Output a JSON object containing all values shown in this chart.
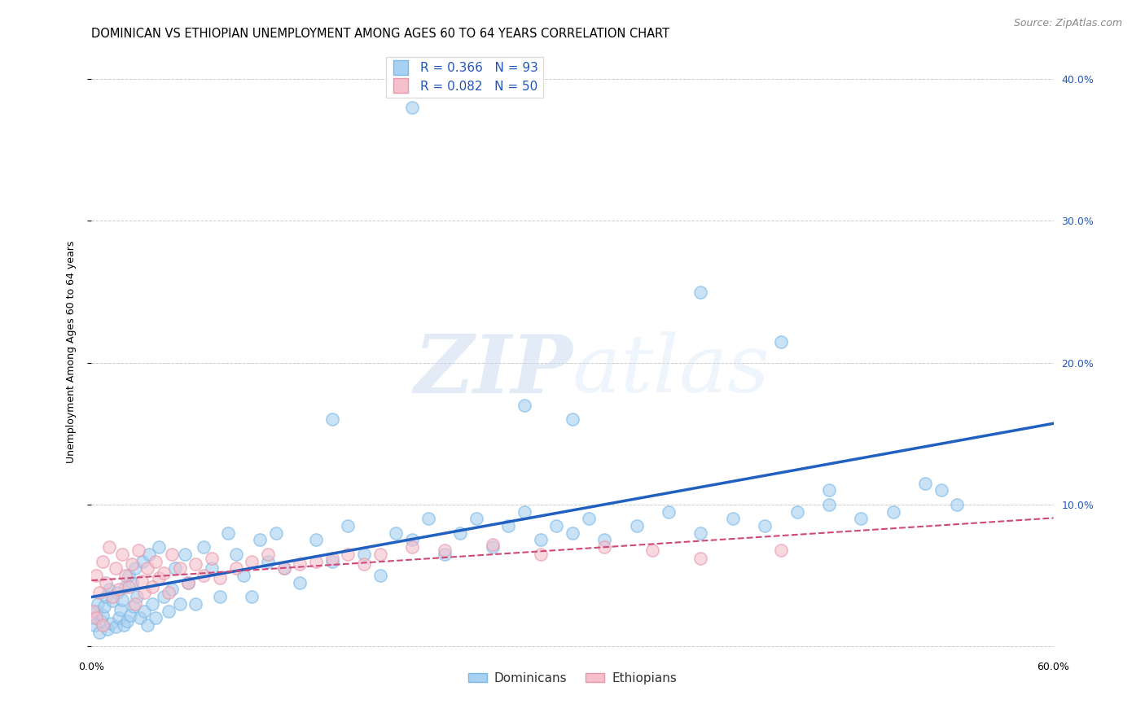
{
  "title": "DOMINICAN VS ETHIOPIAN UNEMPLOYMENT AMONG AGES 60 TO 64 YEARS CORRELATION CHART",
  "source": "Source: ZipAtlas.com",
  "ylabel": "Unemployment Among Ages 60 to 64 years",
  "xlim": [
    0.0,
    0.6
  ],
  "ylim": [
    -0.005,
    0.42
  ],
  "xticks": [
    0.0,
    0.1,
    0.2,
    0.3,
    0.4,
    0.5,
    0.6
  ],
  "xticklabels": [
    "0.0%",
    "",
    "",
    "",
    "",
    "",
    "60.0%"
  ],
  "yticks": [
    0.0,
    0.1,
    0.2,
    0.3,
    0.4
  ],
  "right_yticklabels": [
    "",
    "10.0%",
    "20.0%",
    "30.0%",
    "40.0%"
  ],
  "dominican_color": "#a8d0f0",
  "dominican_edge_color": "#7ab8e8",
  "ethiopian_color": "#f5c0cc",
  "ethiopian_edge_color": "#e896a8",
  "dominican_R": 0.366,
  "dominican_N": 93,
  "ethiopian_R": 0.082,
  "ethiopian_N": 50,
  "dominican_line_color": "#2060c0",
  "ethiopian_line_color": "#d04878",
  "legend_label_dominicans": "Dominicans",
  "legend_label_ethiopians": "Ethiopians",
  "title_fontsize": 10.5,
  "source_fontsize": 9,
  "axis_fontsize": 9,
  "tick_fontsize": 9,
  "legend_fontsize": 11,
  "blue_text_color": "#2255bb",
  "watermark_color": "#c8d8f0",
  "watermark_alpha": 0.5,
  "dominican_x": [
    0.001,
    0.002,
    0.003,
    0.004,
    0.005,
    0.006,
    0.007,
    0.008,
    0.009,
    0.01,
    0.011,
    0.012,
    0.013,
    0.015,
    0.016,
    0.017,
    0.018,
    0.019,
    0.02,
    0.021,
    0.022,
    0.023,
    0.024,
    0.025,
    0.026,
    0.027,
    0.028,
    0.03,
    0.032,
    0.033,
    0.035,
    0.036,
    0.038,
    0.04,
    0.042,
    0.045,
    0.048,
    0.05,
    0.052,
    0.055,
    0.058,
    0.06,
    0.065,
    0.07,
    0.075,
    0.08,
    0.085,
    0.09,
    0.095,
    0.1,
    0.105,
    0.11,
    0.115,
    0.12,
    0.13,
    0.14,
    0.15,
    0.16,
    0.17,
    0.18,
    0.19,
    0.2,
    0.21,
    0.22,
    0.23,
    0.24,
    0.25,
    0.26,
    0.27,
    0.28,
    0.29,
    0.3,
    0.31,
    0.32,
    0.34,
    0.36,
    0.38,
    0.4,
    0.42,
    0.44,
    0.46,
    0.48,
    0.5,
    0.52,
    0.54,
    0.46,
    0.53,
    0.2,
    0.27,
    0.15,
    0.3,
    0.38,
    0.43
  ],
  "dominican_y": [
    0.02,
    0.015,
    0.025,
    0.03,
    0.01,
    0.018,
    0.022,
    0.028,
    0.035,
    0.012,
    0.04,
    0.016,
    0.032,
    0.014,
    0.038,
    0.02,
    0.026,
    0.033,
    0.015,
    0.042,
    0.018,
    0.05,
    0.022,
    0.045,
    0.028,
    0.055,
    0.035,
    0.02,
    0.06,
    0.025,
    0.015,
    0.065,
    0.03,
    0.02,
    0.07,
    0.035,
    0.025,
    0.04,
    0.055,
    0.03,
    0.065,
    0.045,
    0.03,
    0.07,
    0.055,
    0.035,
    0.08,
    0.065,
    0.05,
    0.035,
    0.075,
    0.06,
    0.08,
    0.055,
    0.045,
    0.075,
    0.06,
    0.085,
    0.065,
    0.05,
    0.08,
    0.075,
    0.09,
    0.065,
    0.08,
    0.09,
    0.07,
    0.085,
    0.095,
    0.075,
    0.085,
    0.08,
    0.09,
    0.075,
    0.085,
    0.095,
    0.08,
    0.09,
    0.085,
    0.095,
    0.1,
    0.09,
    0.095,
    0.115,
    0.1,
    0.11,
    0.11,
    0.38,
    0.17,
    0.16,
    0.16,
    0.25,
    0.215
  ],
  "ethiopian_x": [
    0.001,
    0.003,
    0.005,
    0.007,
    0.009,
    0.011,
    0.013,
    0.015,
    0.017,
    0.019,
    0.021,
    0.023,
    0.025,
    0.027,
    0.029,
    0.031,
    0.033,
    0.035,
    0.038,
    0.04,
    0.042,
    0.045,
    0.048,
    0.05,
    0.055,
    0.06,
    0.065,
    0.07,
    0.075,
    0.08,
    0.09,
    0.1,
    0.11,
    0.12,
    0.13,
    0.14,
    0.15,
    0.16,
    0.17,
    0.18,
    0.2,
    0.22,
    0.25,
    0.28,
    0.32,
    0.35,
    0.38,
    0.43,
    0.003,
    0.007
  ],
  "ethiopian_y": [
    0.025,
    0.05,
    0.038,
    0.06,
    0.045,
    0.07,
    0.035,
    0.055,
    0.04,
    0.065,
    0.05,
    0.042,
    0.058,
    0.03,
    0.068,
    0.046,
    0.038,
    0.055,
    0.042,
    0.06,
    0.048,
    0.052,
    0.038,
    0.065,
    0.055,
    0.045,
    0.058,
    0.05,
    0.062,
    0.048,
    0.055,
    0.06,
    0.065,
    0.055,
    0.058,
    0.06,
    0.062,
    0.065,
    0.058,
    0.065,
    0.07,
    0.068,
    0.072,
    0.065,
    0.07,
    0.068,
    0.062,
    0.068,
    0.02,
    0.015
  ]
}
